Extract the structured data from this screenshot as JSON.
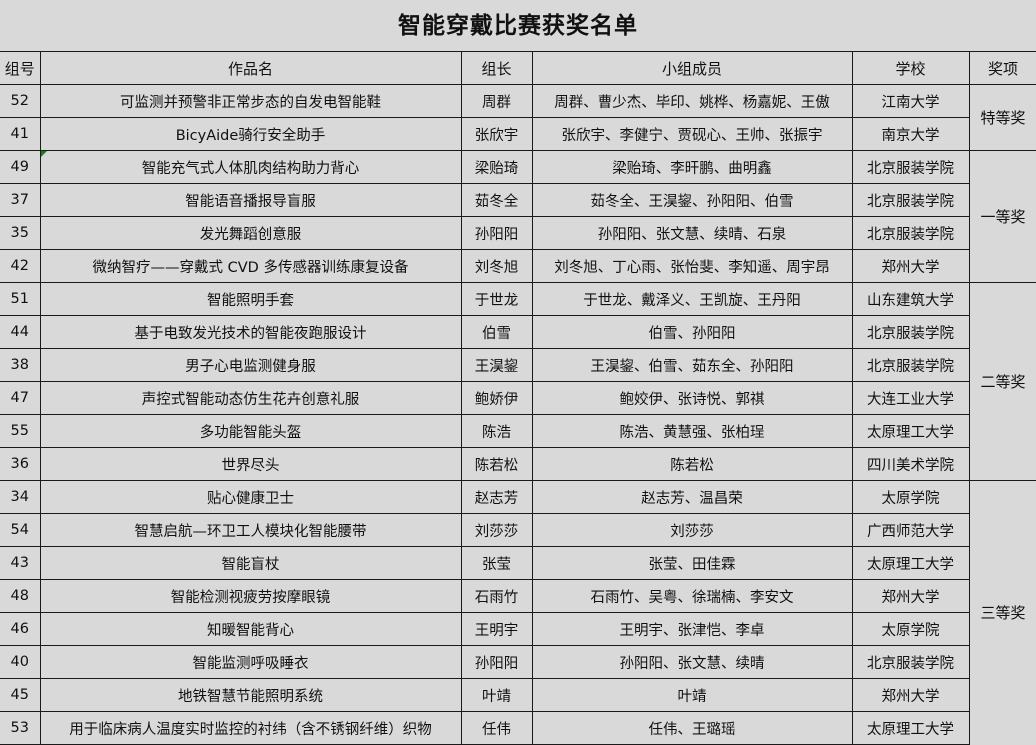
{
  "title": "智能穿戴比赛获奖名单",
  "headers": [
    "组号",
    "作品名",
    "组长",
    "小组成员",
    "学校",
    "奖项"
  ],
  "rows": [
    {
      "id": "52",
      "work": "可监测并预警非正常步态的自发电智能鞋",
      "leader": "周群",
      "members": "周群、曹少杰、毕印、姚桦、杨嘉妮、王傲",
      "school": "江南大学"
    },
    {
      "id": "41",
      "work": "BicyAide骑行安全助手",
      "leader": "张欣宇",
      "members": "张欣宇、李健宁、贾砚心、王帅、张振宇",
      "school": "南京大学"
    },
    {
      "id": "49",
      "work": "智能充气式人体肌肉结构助力背心",
      "leader": "梁贻琦",
      "members": "梁贻琦、李旰鹏、曲明鑫",
      "school": "北京服装学院"
    },
    {
      "id": "37",
      "work": "智能语音播报导盲服",
      "leader": "茹冬全",
      "members": "茹冬全、王淏鋆、孙阳阳、伯雪",
      "school": "北京服装学院"
    },
    {
      "id": "35",
      "work": "发光舞蹈创意服",
      "leader": "孙阳阳",
      "members": "孙阳阳、张文慧、续晴、石泉",
      "school": "北京服装学院"
    },
    {
      "id": "42",
      "work": "微纳智疗——穿戴式 CVD 多传感器训练康复设备",
      "leader": "刘冬旭",
      "members": "刘冬旭、丁心雨、张怡斐、李知遥、周宇昂",
      "school": "郑州大学"
    },
    {
      "id": "51",
      "work": "智能照明手套",
      "leader": "于世龙",
      "members": "于世龙、戴泽义、王凯旋、王丹阳",
      "school": "山东建筑大学"
    },
    {
      "id": "44",
      "work": "基于电致发光技术的智能夜跑服设计",
      "leader": "伯雪",
      "members": "伯雪、孙阳阳",
      "school": "北京服装学院"
    },
    {
      "id": "38",
      "work": "男子心电监测健身服",
      "leader": "王淏鋆",
      "members": "王淏鋆、伯雪、茹东全、孙阳阳",
      "school": "北京服装学院"
    },
    {
      "id": "47",
      "work": "声控式智能动态仿生花卉创意礼服",
      "leader": "鲍娇伊",
      "members": "鲍姣伊、张诗悦、郭祺",
      "school": "大连工业大学"
    },
    {
      "id": "55",
      "work": "多功能智能头盔",
      "leader": "陈浩",
      "members": "陈浩、黄慧强、张柏珵",
      "school": "太原理工大学"
    },
    {
      "id": "36",
      "work": "世界尽头",
      "leader": "陈若松",
      "members": "陈若松",
      "school": "四川美术学院"
    },
    {
      "id": "34",
      "work": "贴心健康卫士",
      "leader": "赵志芳",
      "members": "赵志芳、温昌荣",
      "school": "太原学院"
    },
    {
      "id": "54",
      "work": "智慧启航—环卫工人模块化智能腰带",
      "leader": "刘莎莎",
      "members": "刘莎莎",
      "school": "广西师范大学"
    },
    {
      "id": "43",
      "work": "智能盲杖",
      "leader": "张莹",
      "members": "张莹、田佳霖",
      "school": "太原理工大学"
    },
    {
      "id": "48",
      "work": "智能检测视疲劳按摩眼镜",
      "leader": "石雨竹",
      "members": "石雨竹、吴粤、徐瑞楠、李安文",
      "school": "郑州大学"
    },
    {
      "id": "46",
      "work": "知暖智能背心",
      "leader": "王明宇",
      "members": "王明宇、张津恺、李卓",
      "school": "太原学院"
    },
    {
      "id": "40",
      "work": "智能监测呼吸睡衣",
      "leader": "孙阳阳",
      "members": "孙阳阳、张文慧、续晴",
      "school": "北京服装学院"
    },
    {
      "id": "45",
      "work": "地铁智慧节能照明系统",
      "leader": "叶靖",
      "members": "叶靖",
      "school": "郑州大学"
    },
    {
      "id": "53",
      "work": "用于临床病人温度实时监控的衬纬（含不锈钢纤维）织物",
      "leader": "任伟",
      "members": "任伟、王璐瑶",
      "school": "太原理工大学"
    }
  ],
  "awards": [
    {
      "label": "特等奖",
      "rows": 2
    },
    {
      "label": "一等奖",
      "rows": 4
    },
    {
      "label": "二等奖",
      "rows": 6
    },
    {
      "label": "三等奖",
      "rows": 8
    }
  ]
}
